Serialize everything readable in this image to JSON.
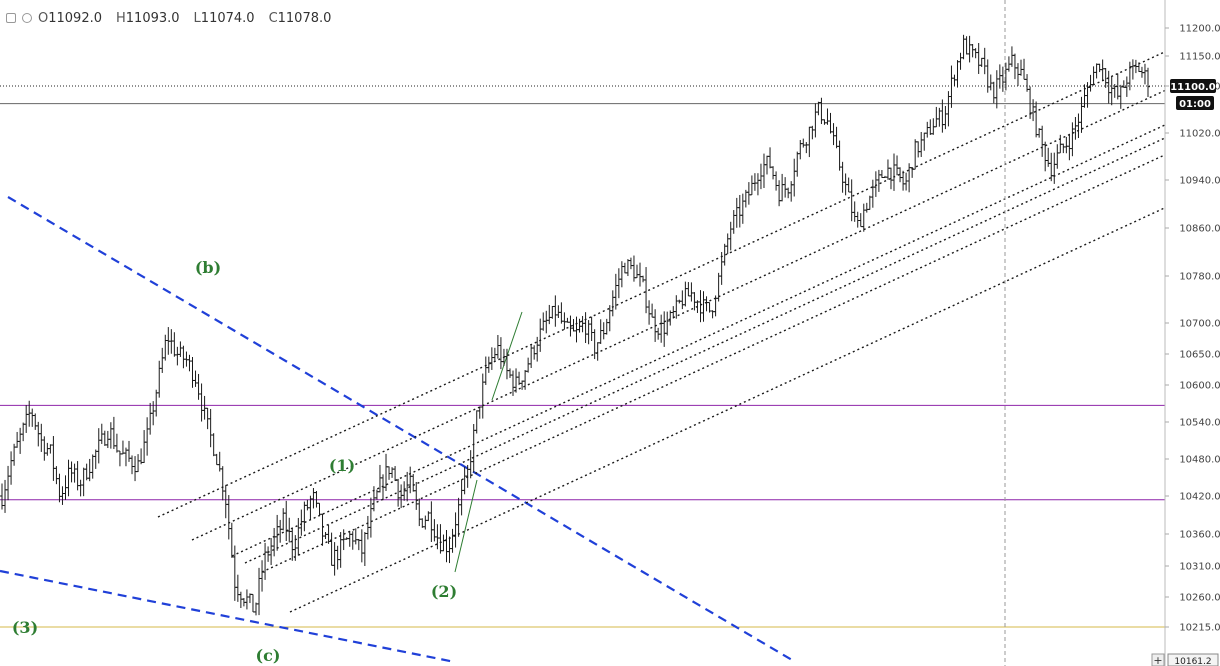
{
  "header": {
    "open_label": "O",
    "open": "11092.0",
    "high_label": "H",
    "high": "11093.0",
    "low_label": "L",
    "low": "11074.0",
    "close_label": "C",
    "close": "11078.0"
  },
  "icons": [
    "square-icon",
    "gear-icon"
  ],
  "price_tags": {
    "last_price": "11100.0",
    "countdown": "01:00",
    "bottom_partial": "10161.2"
  },
  "colors": {
    "bars": "#1a1a1a",
    "trendline": "#2040d8",
    "channel": "#1a1a1a",
    "level_line": "#8e24aa",
    "support_line": "#d4b84a",
    "wave_label": "#2e7d32",
    "tag_bg": "#111111"
  },
  "chart_data": {
    "type": "ohlc",
    "title": "",
    "xlabel": "",
    "ylabel": "",
    "ylim": [
      10150,
      11240
    ],
    "yticks": [
      11200,
      11150,
      11100,
      11020,
      10940,
      10860,
      10780,
      10700,
      10650,
      10600,
      10540,
      10480,
      10420,
      10360,
      10310,
      10260,
      10215
    ],
    "grid": false,
    "horizontal_levels": [
      {
        "price": 10567,
        "style": "solid",
        "color": "purple"
      },
      {
        "price": 10414,
        "style": "solid",
        "color": "purple"
      },
      {
        "price": 10215,
        "style": "solid",
        "color": "gold"
      },
      {
        "price": 11100,
        "style": "dotted",
        "color": "black"
      },
      {
        "price": 11070,
        "style": "solid",
        "color": "grey"
      }
    ],
    "wave_labels": [
      {
        "text": "(b)",
        "price": 10795
      },
      {
        "text": "(1)",
        "price": 10470
      },
      {
        "text": "(2)",
        "price": 10270
      },
      {
        "text": "(3)",
        "price": 10215
      },
      {
        "text": "(c)",
        "price": 10170
      }
    ],
    "price_path": [
      [
        0,
        10420
      ],
      [
        1,
        10480
      ],
      [
        2,
        10520
      ],
      [
        3,
        10560
      ],
      [
        4,
        10510
      ],
      [
        5,
        10490
      ],
      [
        6,
        10420
      ],
      [
        7,
        10460
      ],
      [
        8,
        10440
      ],
      [
        9,
        10470
      ],
      [
        10,
        10500
      ],
      [
        11,
        10530
      ],
      [
        12,
        10490
      ],
      [
        13,
        10480
      ],
      [
        14,
        10470
      ],
      [
        15,
        10520
      ],
      [
        16,
        10600
      ],
      [
        17,
        10680
      ],
      [
        18,
        10650
      ],
      [
        19,
        10640
      ],
      [
        20,
        10610
      ],
      [
        21,
        10540
      ],
      [
        22,
        10490
      ],
      [
        23,
        10420
      ],
      [
        24,
        10280
      ],
      [
        25,
        10260
      ],
      [
        26,
        10240
      ],
      [
        27,
        10320
      ],
      [
        28,
        10350
      ],
      [
        29,
        10380
      ],
      [
        30,
        10340
      ],
      [
        31,
        10390
      ],
      [
        32,
        10420
      ],
      [
        33,
        10360
      ],
      [
        34,
        10320
      ],
      [
        35,
        10340
      ],
      [
        36,
        10360
      ],
      [
        37,
        10330
      ],
      [
        38,
        10390
      ],
      [
        39,
        10440
      ],
      [
        40,
        10470
      ],
      [
        41,
        10420
      ],
      [
        42,
        10440
      ],
      [
        43,
        10380
      ],
      [
        44,
        10390
      ],
      [
        45,
        10350
      ],
      [
        46,
        10340
      ],
      [
        47,
        10400
      ],
      [
        48,
        10460
      ],
      [
        49,
        10560
      ],
      [
        50,
        10630
      ],
      [
        51,
        10660
      ],
      [
        52,
        10620
      ],
      [
        53,
        10600
      ],
      [
        54,
        10630
      ],
      [
        55,
        10670
      ],
      [
        56,
        10700
      ],
      [
        57,
        10720
      ],
      [
        58,
        10690
      ],
      [
        59,
        10680
      ],
      [
        60,
        10700
      ],
      [
        61,
        10660
      ],
      [
        62,
        10690
      ],
      [
        63,
        10750
      ],
      [
        64,
        10800
      ],
      [
        65,
        10790
      ],
      [
        66,
        10760
      ],
      [
        67,
        10700
      ],
      [
        68,
        10690
      ],
      [
        69,
        10710
      ],
      [
        70,
        10740
      ],
      [
        71,
        10750
      ],
      [
        72,
        10730
      ],
      [
        73,
        10720
      ],
      [
        74,
        10790
      ],
      [
        75,
        10860
      ],
      [
        76,
        10890
      ],
      [
        77,
        10920
      ],
      [
        78,
        10960
      ],
      [
        79,
        10970
      ],
      [
        80,
        10920
      ],
      [
        81,
        10930
      ],
      [
        82,
        10990
      ],
      [
        83,
        11020
      ],
      [
        84,
        11060
      ],
      [
        85,
        11040
      ],
      [
        86,
        10980
      ],
      [
        87,
        10920
      ],
      [
        88,
        10860
      ],
      [
        89,
        10900
      ],
      [
        90,
        10930
      ],
      [
        91,
        10960
      ],
      [
        92,
        10950
      ],
      [
        93,
        10930
      ],
      [
        94,
        10990
      ],
      [
        95,
        11010
      ],
      [
        96,
        11040
      ],
      [
        97,
        11050
      ],
      [
        98,
        11120
      ],
      [
        99,
        11170
      ],
      [
        100,
        11150
      ],
      [
        101,
        11130
      ],
      [
        102,
        11090
      ],
      [
        103,
        11110
      ],
      [
        104,
        11140
      ],
      [
        105,
        11120
      ],
      [
        106,
        11060
      ],
      [
        107,
        11000
      ],
      [
        108,
        10960
      ],
      [
        109,
        10990
      ],
      [
        110,
        11010
      ],
      [
        111,
        11050
      ],
      [
        112,
        11110
      ],
      [
        113,
        11140
      ],
      [
        114,
        11100
      ],
      [
        115,
        11080
      ],
      [
        116,
        11120
      ],
      [
        117,
        11130
      ],
      [
        118,
        11110
      ]
    ]
  }
}
